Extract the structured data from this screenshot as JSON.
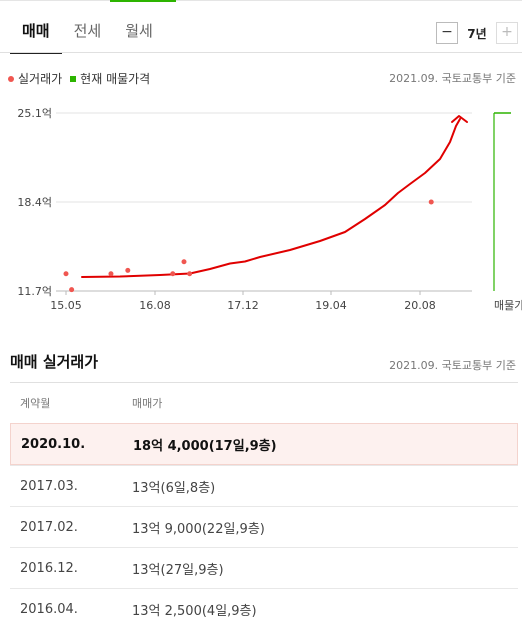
{
  "tabs": [
    {
      "label": "매매",
      "active": true
    },
    {
      "label": "전세",
      "active": false
    },
    {
      "label": "월세",
      "active": false
    }
  ],
  "period": {
    "minus": "−",
    "label": "7년",
    "plus": "+"
  },
  "legend": {
    "actual": "실거래가",
    "current": "현재 매물가격"
  },
  "source": "2021.09. 국토교통부 기준",
  "colors": {
    "actual": "#f05650",
    "current": "#2db400",
    "trend": "#e00000"
  },
  "chart_data": {
    "type": "scatter",
    "y_ticks": [
      "25.1억",
      "18.4억",
      "11.7억"
    ],
    "y_tick_values": [
      25.1,
      18.4,
      11.7
    ],
    "ylim": [
      11.7,
      25.1
    ],
    "x_ticks": [
      "15.05",
      "16.08",
      "17.12",
      "19.04",
      "20.08",
      "매물가격"
    ],
    "series": [
      {
        "name": "실거래가",
        "points": [
          {
            "x": "2015.05",
            "y": 13.0
          },
          {
            "x": "2015.06",
            "y": 11.8
          },
          {
            "x": "2016.01",
            "y": 13.0
          },
          {
            "x": "2016.04",
            "y": 13.25
          },
          {
            "x": "2016.12",
            "y": 13.0
          },
          {
            "x": "2017.02",
            "y": 13.9
          },
          {
            "x": "2017.03",
            "y": 13.0
          },
          {
            "x": "2020.10",
            "y": 18.4
          }
        ]
      }
    ],
    "current_listing": {
      "label": "매물가격",
      "low": 11.7,
      "high": 25.1
    }
  },
  "table": {
    "title": "매매 실거래가",
    "source": "2021.09. 국토교통부 기준",
    "headers": [
      "계약월",
      "매매가"
    ],
    "rows": [
      {
        "date": "2020.10.",
        "price": "18억 4,000(17일,9층)",
        "highlight": true
      },
      {
        "date": "2017.03.",
        "price": "13억(6일,8층)",
        "highlight": false
      },
      {
        "date": "2017.02.",
        "price": "13억 9,000(22일,9층)",
        "highlight": false
      },
      {
        "date": "2016.12.",
        "price": "13억(27일,9층)",
        "highlight": false
      },
      {
        "date": "2016.04.",
        "price": "13억 2,500(4일,9층)",
        "highlight": false
      }
    ]
  }
}
